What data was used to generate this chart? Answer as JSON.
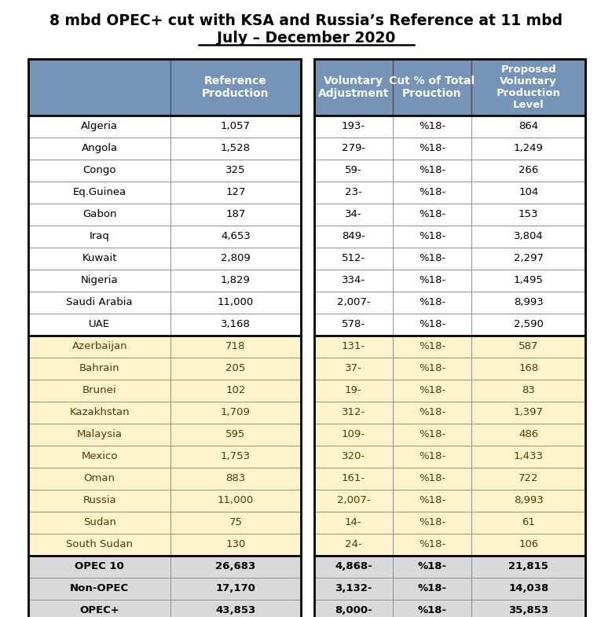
{
  "title_line1": "8 mbd OPEC+ cut with KSA and Russia’s Reference at 11 mbd",
  "title_line2": "July – December 2020",
  "header_bg": "#7494b8",
  "header_text": "#ffffff",
  "opec_bg": "#ffffff",
  "nonopec_bg": "#fff3cc",
  "summary_bg": "#d9d9d9",
  "border_color": "#000000",
  "opec_rows": [
    [
      "Algeria",
      "1,057",
      "193-",
      "%18-",
      "864"
    ],
    [
      "Angola",
      "1,528",
      "279-",
      "%18-",
      "1,249"
    ],
    [
      "Congo",
      "325",
      "59-",
      "%18-",
      "266"
    ],
    [
      "Eq.Guinea",
      "127",
      "23-",
      "%18-",
      "104"
    ],
    [
      "Gabon",
      "187",
      "34-",
      "%18-",
      "153"
    ],
    [
      "Iraq",
      "4,653",
      "849-",
      "%18-",
      "3,804"
    ],
    [
      "Kuwait",
      "2,809",
      "512-",
      "%18-",
      "2,297"
    ],
    [
      "Nigeria",
      "1,829",
      "334-",
      "%18-",
      "1,495"
    ],
    [
      "Saudi Arabia",
      "11,000",
      "2,007-",
      "%18-",
      "8,993"
    ],
    [
      "UAE",
      "3,168",
      "578-",
      "%18-",
      "2,590"
    ]
  ],
  "nonopec_rows": [
    [
      "Azerbaijan",
      "718",
      "131-",
      "%18-",
      "587"
    ],
    [
      "Bahrain",
      "205",
      "37-",
      "%18-",
      "168"
    ],
    [
      "Brunei",
      "102",
      "19-",
      "%18-",
      "83"
    ],
    [
      "Kazakhstan",
      "1,709",
      "312-",
      "%18-",
      "1,397"
    ],
    [
      "Malaysia",
      "595",
      "109-",
      "%18-",
      "486"
    ],
    [
      "Mexico",
      "1,753",
      "320-",
      "%18-",
      "1,433"
    ],
    [
      "Oman",
      "883",
      "161-",
      "%18-",
      "722"
    ],
    [
      "Russia",
      "11,000",
      "2,007-",
      "%18-",
      "8,993"
    ],
    [
      "Sudan",
      "75",
      "14-",
      "%18-",
      "61"
    ],
    [
      "South Sudan",
      "130",
      "24-",
      "%18-",
      "106"
    ]
  ],
  "summary_rows": [
    [
      "OPEC 10",
      "26,683",
      "4,868-",
      "%18-",
      "21,815"
    ],
    [
      "Non-OPEC",
      "17,170",
      "3,132-",
      "%18-",
      "14,038"
    ],
    [
      "OPEC+",
      "43,853",
      "8,000-",
      "%18-",
      "35,853"
    ]
  ]
}
